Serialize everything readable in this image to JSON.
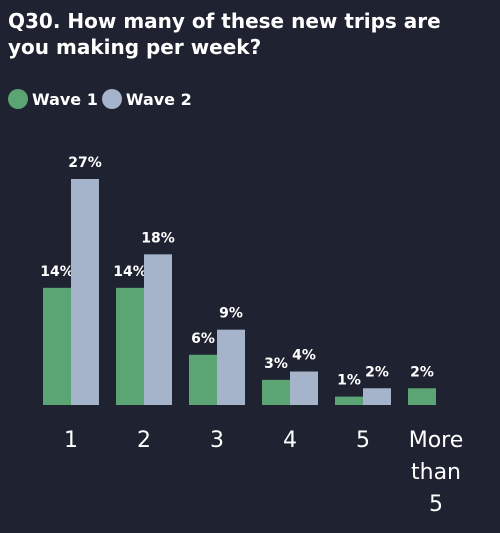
{
  "chart_data": {
    "type": "bar",
    "title": "Q30. How many of these new trips are you making per week?",
    "categories": [
      "1",
      "2",
      "3",
      "4",
      "5",
      "More than 5"
    ],
    "series": [
      {
        "name": "Wave 1",
        "color": "#5ba473",
        "values": [
          14,
          14,
          6,
          3,
          1,
          2
        ],
        "value_labels": [
          "14%",
          "14%",
          "6%",
          "3%",
          "1%",
          "2%"
        ]
      },
      {
        "name": "Wave 2",
        "color": "#a6b4cb",
        "values": [
          27,
          18,
          9,
          4,
          2,
          null
        ],
        "value_labels": [
          "27%",
          "18%",
          "9%",
          "4%",
          "2%",
          null
        ]
      }
    ]
  }
}
